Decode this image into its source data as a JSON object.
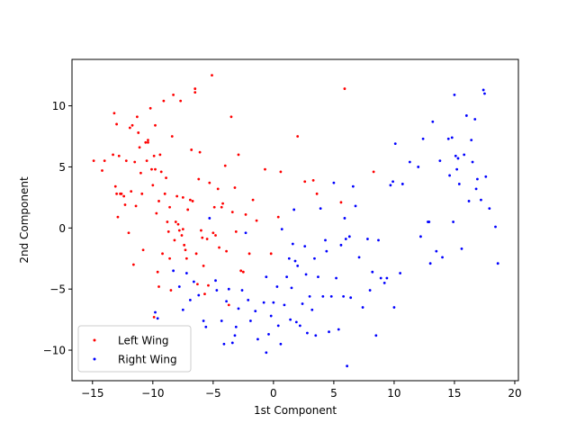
{
  "chart_data": {
    "type": "scatter",
    "title": "",
    "xlabel": "1st Component",
    "ylabel": "2nd Component",
    "xlim": [
      -16.7,
      20.3
    ],
    "ylim": [
      -12.5,
      13.8
    ],
    "xticks": [
      -15,
      -10,
      -5,
      0,
      5,
      10,
      15,
      20
    ],
    "yticks": [
      -10,
      -5,
      0,
      5,
      10
    ],
    "grid": false,
    "legend_position": "lower-left",
    "series": [
      {
        "name": "Left Wing",
        "color": "#ff0000",
        "points": [
          [
            -14.9,
            5.5
          ],
          [
            -14.2,
            4.7
          ],
          [
            -14.0,
            5.5
          ],
          [
            -13.3,
            6.0
          ],
          [
            -13.2,
            9.4
          ],
          [
            -13.0,
            8.5
          ],
          [
            -13.0,
            2.8
          ],
          [
            -12.9,
            0.9
          ],
          [
            -12.8,
            5.9
          ],
          [
            -12.6,
            2.8
          ],
          [
            -12.4,
            2.6
          ],
          [
            -12.3,
            1.9
          ],
          [
            -12.2,
            5.5
          ],
          [
            -12.0,
            -0.4
          ],
          [
            -11.9,
            8.2
          ],
          [
            -11.8,
            3.0
          ],
          [
            -11.7,
            8.4
          ],
          [
            -11.6,
            -3.0
          ],
          [
            -11.5,
            5.4
          ],
          [
            -11.4,
            1.8
          ],
          [
            -11.3,
            9.1
          ],
          [
            -11.2,
            7.8
          ],
          [
            -11.1,
            6.6
          ],
          [
            -11.0,
            4.5
          ],
          [
            -10.9,
            2.8
          ],
          [
            -10.8,
            -1.8
          ],
          [
            -10.6,
            7.0
          ],
          [
            -10.5,
            5.5
          ],
          [
            -10.4,
            7.2
          ],
          [
            -10.2,
            9.8
          ],
          [
            -10.1,
            4.8
          ],
          [
            -10.0,
            3.5
          ],
          [
            -9.9,
            5.9
          ],
          [
            -9.8,
            4.8
          ],
          [
            -9.8,
            8.4
          ],
          [
            -9.7,
            1.2
          ],
          [
            -9.6,
            -3.6
          ],
          [
            -9.5,
            -4.8
          ],
          [
            -9.5,
            2.2
          ],
          [
            -9.4,
            6.0
          ],
          [
            -9.3,
            4.6
          ],
          [
            -9.2,
            -2.1
          ],
          [
            -9.1,
            10.4
          ],
          [
            -9.0,
            2.8
          ],
          [
            -8.9,
            4.1
          ],
          [
            -8.8,
            0.5
          ],
          [
            -8.7,
            -0.3
          ],
          [
            -8.6,
            1.7
          ],
          [
            -8.5,
            -5.1
          ],
          [
            -8.4,
            7.5
          ],
          [
            -8.3,
            10.9
          ],
          [
            -8.2,
            -1.0
          ],
          [
            -8.1,
            0.5
          ],
          [
            -8.0,
            2.6
          ],
          [
            -7.9,
            0.3
          ],
          [
            -7.8,
            -0.2
          ],
          [
            -7.7,
            10.4
          ],
          [
            -7.6,
            -0.6
          ],
          [
            -7.5,
            -0.1
          ],
          [
            -7.4,
            -1.4
          ],
          [
            -7.3,
            -1.8
          ],
          [
            -7.2,
            -2.5
          ],
          [
            -7.1,
            1.5
          ],
          [
            -6.9,
            2.3
          ],
          [
            -6.8,
            6.4
          ],
          [
            -6.7,
            2.2
          ],
          [
            -6.5,
            11.1
          ],
          [
            -6.4,
            -2.1
          ],
          [
            -6.3,
            -4.6
          ],
          [
            -6.2,
            4.0
          ],
          [
            -6.1,
            6.2
          ],
          [
            -6.0,
            -0.2
          ],
          [
            -5.9,
            -0.8
          ],
          [
            -5.8,
            -3.1
          ],
          [
            -5.7,
            -5.4
          ],
          [
            -5.5,
            -0.9
          ],
          [
            -5.4,
            -4.7
          ],
          [
            -5.3,
            3.7
          ],
          [
            -5.1,
            12.5
          ],
          [
            -5.0,
            -0.4
          ],
          [
            -4.9,
            1.7
          ],
          [
            -4.8,
            -0.6
          ],
          [
            -4.6,
            3.2
          ],
          [
            -4.5,
            -1.6
          ],
          [
            -4.3,
            1.7
          ],
          [
            -4.2,
            2.0
          ],
          [
            -4.0,
            5.1
          ],
          [
            -3.9,
            -1.9
          ],
          [
            -3.7,
            -6.3
          ],
          [
            -3.5,
            9.1
          ],
          [
            -3.4,
            1.3
          ],
          [
            -3.2,
            3.3
          ],
          [
            -3.1,
            -0.3
          ],
          [
            -2.9,
            6.0
          ],
          [
            -2.7,
            -3.5
          ],
          [
            -2.5,
            -3.6
          ],
          [
            -2.3,
            1.1
          ],
          [
            -2.0,
            -2.1
          ],
          [
            -1.7,
            2.3
          ],
          [
            -1.4,
            0.6
          ],
          [
            -0.7,
            4.8
          ],
          [
            -0.2,
            -2.1
          ],
          [
            0.4,
            0.9
          ],
          [
            0.6,
            4.6
          ],
          [
            2.0,
            7.5
          ],
          [
            2.6,
            3.8
          ],
          [
            3.3,
            3.9
          ],
          [
            3.6,
            2.8
          ],
          [
            5.6,
            2.1
          ],
          [
            5.9,
            11.4
          ],
          [
            8.3,
            4.6
          ],
          [
            -6.5,
            11.4
          ],
          [
            -10.4,
            7.0
          ],
          [
            -9.9,
            -7.3
          ],
          [
            -7.5,
            2.5
          ],
          [
            -12.7,
            2.8
          ],
          [
            -13.1,
            3.4
          ],
          [
            -8.6,
            -2.5
          ]
        ]
      },
      {
        "name": "Right Wing",
        "color": "#0000ff",
        "points": [
          [
            -9.8,
            -6.9
          ],
          [
            -9.6,
            -7.4
          ],
          [
            -8.3,
            -3.5
          ],
          [
            -7.8,
            -4.8
          ],
          [
            -7.5,
            -6.7
          ],
          [
            -7.2,
            -3.7
          ],
          [
            -6.9,
            -5.9
          ],
          [
            -6.6,
            -4.4
          ],
          [
            -6.2,
            -5.5
          ],
          [
            -5.8,
            -7.6
          ],
          [
            -5.6,
            -8.1
          ],
          [
            -5.3,
            0.8
          ],
          [
            -4.8,
            -4.3
          ],
          [
            -4.7,
            -5.1
          ],
          [
            -4.3,
            -7.6
          ],
          [
            -4.1,
            -9.5
          ],
          [
            -3.9,
            -6.0
          ],
          [
            -3.7,
            -5.0
          ],
          [
            -3.4,
            -9.4
          ],
          [
            -3.2,
            -8.8
          ],
          [
            -3.1,
            -8.1
          ],
          [
            -2.9,
            -6.6
          ],
          [
            -2.6,
            -5.1
          ],
          [
            -2.3,
            -0.4
          ],
          [
            -2.1,
            -5.9
          ],
          [
            -1.9,
            -7.6
          ],
          [
            -1.5,
            -6.8
          ],
          [
            -1.3,
            -9.1
          ],
          [
            -0.8,
            -6.1
          ],
          [
            -0.6,
            -4.0
          ],
          [
            -0.6,
            -10.2
          ],
          [
            -0.4,
            -8.7
          ],
          [
            -0.2,
            -7.2
          ],
          [
            0.0,
            -6.1
          ],
          [
            0.3,
            -4.8
          ],
          [
            0.4,
            -8.0
          ],
          [
            0.6,
            -9.5
          ],
          [
            0.7,
            -0.1
          ],
          [
            0.9,
            -6.3
          ],
          [
            1.1,
            -4.0
          ],
          [
            1.3,
            -2.5
          ],
          [
            1.4,
            -7.5
          ],
          [
            1.5,
            -4.9
          ],
          [
            1.6,
            -1.3
          ],
          [
            1.7,
            1.5
          ],
          [
            1.8,
            -2.7
          ],
          [
            1.9,
            -7.7
          ],
          [
            2.0,
            -3.1
          ],
          [
            2.2,
            -8.0
          ],
          [
            2.4,
            -6.2
          ],
          [
            2.6,
            -1.5
          ],
          [
            2.7,
            -3.8
          ],
          [
            2.8,
            -8.6
          ],
          [
            3.0,
            -5.6
          ],
          [
            3.2,
            -6.7
          ],
          [
            3.4,
            -2.5
          ],
          [
            3.5,
            -8.8
          ],
          [
            3.7,
            -4.0
          ],
          [
            3.9,
            1.6
          ],
          [
            4.1,
            -5.6
          ],
          [
            4.3,
            -1.0
          ],
          [
            4.4,
            -1.9
          ],
          [
            4.6,
            -8.5
          ],
          [
            4.8,
            -5.6
          ],
          [
            5.0,
            3.7
          ],
          [
            5.2,
            -4.1
          ],
          [
            5.4,
            -8.3
          ],
          [
            5.6,
            -1.4
          ],
          [
            5.8,
            -5.6
          ],
          [
            5.9,
            0.8
          ],
          [
            6.0,
            -0.9
          ],
          [
            6.1,
            -11.3
          ],
          [
            6.3,
            -0.7
          ],
          [
            6.4,
            -5.7
          ],
          [
            6.6,
            3.4
          ],
          [
            6.8,
            1.8
          ],
          [
            7.1,
            -2.4
          ],
          [
            7.4,
            -6.5
          ],
          [
            7.8,
            -0.9
          ],
          [
            8.0,
            -5.1
          ],
          [
            8.2,
            -3.6
          ],
          [
            8.5,
            -8.8
          ],
          [
            8.7,
            -1.0
          ],
          [
            8.9,
            -4.1
          ],
          [
            9.2,
            -4.5
          ],
          [
            9.4,
            -4.1
          ],
          [
            9.7,
            3.5
          ],
          [
            9.9,
            3.8
          ],
          [
            10.0,
            -6.5
          ],
          [
            10.1,
            6.9
          ],
          [
            10.5,
            -3.7
          ],
          [
            10.7,
            3.6
          ],
          [
            11.3,
            5.4
          ],
          [
            12.0,
            5.0
          ],
          [
            12.2,
            -0.7
          ],
          [
            12.4,
            7.3
          ],
          [
            12.8,
            0.5
          ],
          [
            13.0,
            -2.9
          ],
          [
            13.2,
            8.7
          ],
          [
            13.5,
            -1.9
          ],
          [
            13.8,
            5.5
          ],
          [
            14.0,
            -2.4
          ],
          [
            14.5,
            7.3
          ],
          [
            14.8,
            7.4
          ],
          [
            15.0,
            10.9
          ],
          [
            15.2,
            4.8
          ],
          [
            15.4,
            3.6
          ],
          [
            15.6,
            -1.7
          ],
          [
            15.8,
            6.0
          ],
          [
            16.0,
            9.2
          ],
          [
            16.2,
            2.2
          ],
          [
            16.5,
            5.4
          ],
          [
            16.7,
            8.9
          ],
          [
            16.9,
            4.0
          ],
          [
            17.2,
            2.3
          ],
          [
            17.4,
            11.3
          ],
          [
            17.6,
            4.2
          ],
          [
            17.9,
            1.6
          ],
          [
            18.4,
            0.1
          ],
          [
            18.6,
            -2.9
          ],
          [
            15.1,
            5.9
          ],
          [
            14.9,
            0.5
          ],
          [
            16.4,
            7.2
          ],
          [
            17.5,
            11.0
          ],
          [
            12.9,
            0.5
          ],
          [
            15.3,
            5.7
          ],
          [
            14.6,
            4.3
          ],
          [
            16.8,
            3.2
          ]
        ]
      }
    ]
  }
}
